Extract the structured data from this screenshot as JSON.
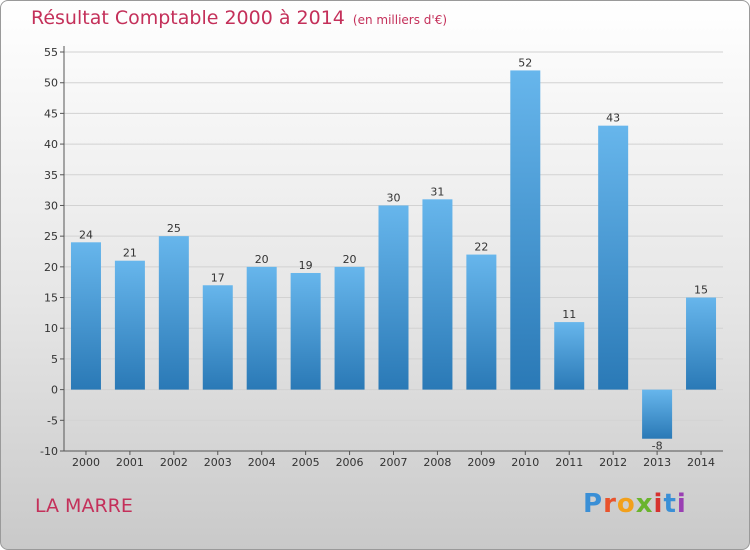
{
  "title": "Résultat Comptable 2000 à 2014",
  "subtitle": "(en milliers d'€)",
  "place": "LA MARRE",
  "logo": {
    "text": "Proxiti",
    "colors": [
      "#3a8fd6",
      "#e9532c",
      "#f2a01b",
      "#6ab42d",
      "#d6312f",
      "#3a8fd6",
      "#9a3fb3"
    ]
  },
  "colors": {
    "bar_top": "#67b6ec",
    "bar_bottom": "#2a79b6",
    "title": "#c4305a"
  },
  "chart_data": {
    "type": "bar",
    "categories": [
      "2000",
      "2001",
      "2002",
      "2003",
      "2004",
      "2005",
      "2006",
      "2007",
      "2008",
      "2009",
      "2010",
      "2011",
      "2012",
      "2013",
      "2014"
    ],
    "values": [
      24,
      21,
      25,
      17,
      20,
      19,
      20,
      30,
      31,
      22,
      52,
      11,
      43,
      -8,
      15
    ],
    "title": "Résultat Comptable 2000 à 2014",
    "ylim": [
      -10,
      55
    ],
    "yticks": [
      -10,
      -5,
      0,
      5,
      10,
      15,
      20,
      25,
      30,
      35,
      40,
      45,
      50,
      55
    ],
    "grid": true
  }
}
